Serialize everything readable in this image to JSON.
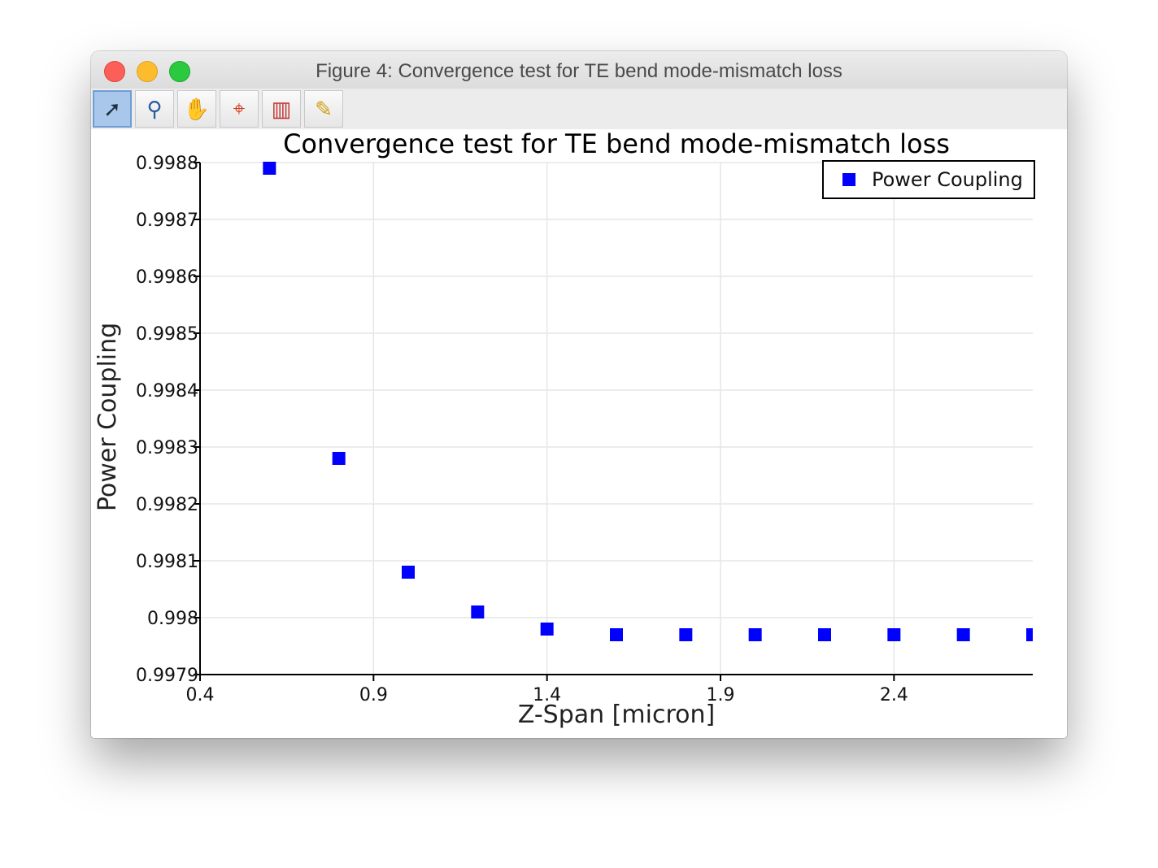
{
  "window": {
    "title": "Figure 4: Convergence test for TE bend mode-mismatch loss"
  },
  "toolbar": {
    "tools": [
      {
        "name": "select-icon",
        "glyph": "➚"
      },
      {
        "name": "zoom-icon",
        "glyph": "⚲"
      },
      {
        "name": "pan-hand-icon",
        "glyph": "✋"
      },
      {
        "name": "zoom-region-icon",
        "glyph": "⌖"
      },
      {
        "name": "plot-data-icon",
        "glyph": "▥"
      },
      {
        "name": "pencil-icon",
        "glyph": "✎"
      }
    ]
  },
  "chart_data": {
    "type": "scatter",
    "title": "Convergence test for TE bend mode-mismatch loss",
    "xlabel": "Z-Span [micron]",
    "ylabel": "Power Coupling",
    "xlim": [
      0.4,
      2.8
    ],
    "ylim": [
      0.9979,
      0.9988
    ],
    "x_ticks": [
      "0.4",
      "0.9",
      "1.4",
      "1.9",
      "2.4"
    ],
    "x_tick_values": [
      0.4,
      0.9,
      1.4,
      1.9,
      2.4
    ],
    "y_ticks": [
      "0.9979",
      "0.998",
      "0.9981",
      "0.9982",
      "0.9983",
      "0.9984",
      "0.9985",
      "0.9986",
      "0.9987",
      "0.9988"
    ],
    "y_tick_values": [
      0.9979,
      0.998,
      0.9981,
      0.9982,
      0.9983,
      0.9984,
      0.9985,
      0.9986,
      0.9987,
      0.9988
    ],
    "grid": true,
    "legend_position": "top-right",
    "series": [
      {
        "name": "Power Coupling",
        "color": "#0000ff",
        "marker": "square",
        "x": [
          0.6,
          0.8,
          1.0,
          1.2,
          1.4,
          1.6,
          1.8,
          2.0,
          2.2,
          2.4,
          2.6,
          2.8
        ],
        "y": [
          0.99879,
          0.99828,
          0.99808,
          0.99801,
          0.99798,
          0.99797,
          0.99797,
          0.99797,
          0.99797,
          0.99797,
          0.99797,
          0.99797
        ]
      }
    ]
  }
}
